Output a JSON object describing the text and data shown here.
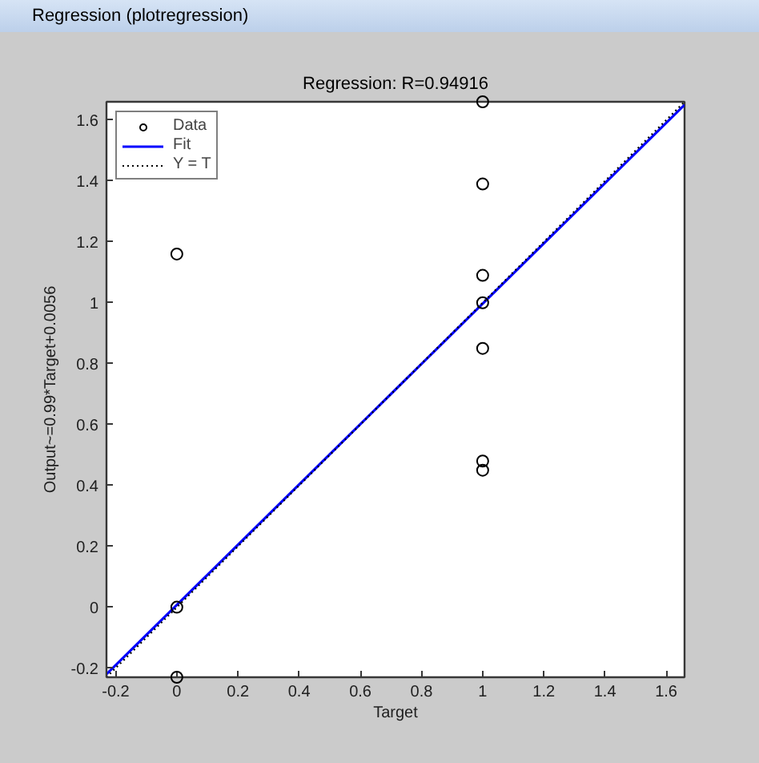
{
  "chart_data": {
    "type": "scatter",
    "title": "Regression: R=0.94916",
    "xlabel": "Target",
    "ylabel": "Output~=0.99*Target+0.0056",
    "annotations": [
      "Regression (plotregression)"
    ],
    "series": [
      {
        "name": "Data",
        "marker": "circle",
        "color": "#000000",
        "x": [
          0,
          0,
          0,
          1,
          1,
          1,
          1,
          1,
          1,
          1
        ],
        "values": [
          1.16,
          0,
          -0.23,
          1.66,
          1.39,
          1.09,
          1.0,
          0.85,
          0.48,
          0.45
        ]
      },
      {
        "name": "Fit",
        "type": "line",
        "line_style": "solid",
        "color": "#0000ff",
        "x": [
          -0.23,
          1.66
        ],
        "values": [
          -0.22,
          1.65
        ]
      },
      {
        "name": "Y = T",
        "type": "line",
        "line_style": "dotted",
        "color": "#000000",
        "x": [
          -0.23,
          1.66
        ],
        "values": [
          -0.23,
          1.66
        ]
      }
    ],
    "xlim": [
      -0.23,
      1.66
    ],
    "ylim": [
      -0.23,
      1.66
    ],
    "xticks": [
      -0.2,
      0,
      0.2,
      0.4,
      0.6,
      0.8,
      1,
      1.2,
      1.4,
      1.6
    ],
    "yticks": [
      -0.2,
      0,
      0.2,
      0.4,
      0.6,
      0.8,
      1,
      1.2,
      1.4,
      1.6
    ],
    "legend": "top left"
  }
}
